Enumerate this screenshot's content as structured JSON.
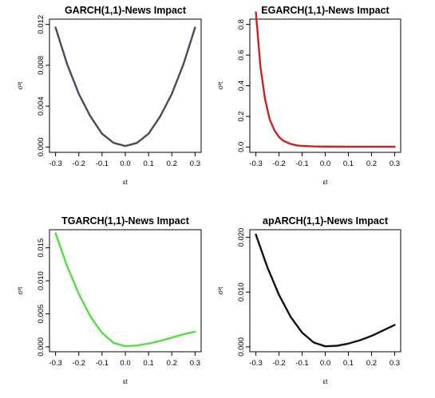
{
  "chart_data": [
    {
      "type": "line",
      "title": "GARCH(1,1)-News Impact",
      "xlabel": "εt",
      "ylabel": "σ²t",
      "xlim": [
        -0.3,
        0.3
      ],
      "ylim": [
        0,
        0.012
      ],
      "x_ticks": [
        "-0.3",
        "-0.2",
        "-0.1",
        "0.0",
        "0.1",
        "0.2",
        "0.3"
      ],
      "y_ticks": [
        "0.000",
        "0.004",
        "0.008",
        "0.012"
      ],
      "color": "#4a4a5c",
      "series": [
        {
          "x": [
            -0.3,
            -0.25,
            -0.2,
            -0.15,
            -0.1,
            -0.05,
            0.0,
            0.05,
            0.1,
            0.15,
            0.2,
            0.25,
            0.3
          ],
          "y": [
            0.0117,
            0.0081,
            0.0052,
            0.003,
            0.0013,
            0.0004,
            0.0001,
            0.0004,
            0.0013,
            0.003,
            0.0052,
            0.0081,
            0.0117
          ]
        }
      ]
    },
    {
      "type": "line",
      "title": "EGARCH(1,1)-News Impact",
      "xlabel": "εt",
      "ylabel": "σ²t",
      "xlim": [
        -0.3,
        0.3
      ],
      "ylim": [
        0,
        0.8
      ],
      "x_ticks": [
        "-0.3",
        "-0.2",
        "-0.1",
        "0.0",
        "0.1",
        "0.2",
        "0.3"
      ],
      "y_ticks": [
        "0.0",
        "0.2",
        "0.4",
        "0.6",
        "0.8"
      ],
      "color": "#cc2222",
      "series": [
        {
          "x": [
            -0.3,
            -0.28,
            -0.26,
            -0.24,
            -0.22,
            -0.2,
            -0.18,
            -0.15,
            -0.12,
            -0.1,
            -0.05,
            0.0,
            0.1,
            0.2,
            0.3
          ],
          "y": [
            0.88,
            0.52,
            0.31,
            0.18,
            0.11,
            0.065,
            0.04,
            0.02,
            0.01,
            0.007,
            0.004,
            0.003,
            0.002,
            0.002,
            0.002
          ]
        }
      ]
    },
    {
      "type": "line",
      "title": "TGARCH(1,1)-News Impact",
      "xlabel": "εt",
      "ylabel": "σ²t",
      "xlim": [
        -0.3,
        0.3
      ],
      "ylim": [
        0,
        0.017
      ],
      "x_ticks": [
        "-0.3",
        "-0.2",
        "-0.1",
        "0.0",
        "0.1",
        "0.2",
        "0.3"
      ],
      "y_ticks": [
        "0.000",
        "0.005",
        "0.010",
        "0.015"
      ],
      "color": "#55dd44",
      "series": [
        {
          "x": [
            -0.3,
            -0.25,
            -0.2,
            -0.15,
            -0.1,
            -0.05,
            0.0,
            0.05,
            0.1,
            0.15,
            0.2,
            0.25,
            0.3
          ],
          "y": [
            0.0172,
            0.0122,
            0.008,
            0.0046,
            0.0021,
            0.0006,
            0.0001,
            0.0002,
            0.0005,
            0.0009,
            0.0014,
            0.0019,
            0.0023
          ]
        }
      ]
    },
    {
      "type": "line",
      "title": "apARCH(1,1)-News Impact",
      "xlabel": "εt",
      "ylabel": "σ²t",
      "xlim": [
        -0.3,
        0.3
      ],
      "ylim": [
        0,
        0.0205
      ],
      "x_ticks": [
        "-0.3",
        "-0.2",
        "-0.1",
        "0.0",
        "0.1",
        "0.2",
        "0.3"
      ],
      "y_ticks": [
        "0.000",
        "0.010",
        "0.020"
      ],
      "color": "#111111",
      "series": [
        {
          "x": [
            -0.3,
            -0.25,
            -0.2,
            -0.15,
            -0.1,
            -0.05,
            0.0,
            0.05,
            0.1,
            0.15,
            0.2,
            0.25,
            0.3
          ],
          "y": [
            0.0205,
            0.0145,
            0.0095,
            0.0055,
            0.0026,
            0.0008,
            0.0001,
            0.0002,
            0.0006,
            0.0012,
            0.002,
            0.003,
            0.004
          ]
        }
      ]
    }
  ]
}
